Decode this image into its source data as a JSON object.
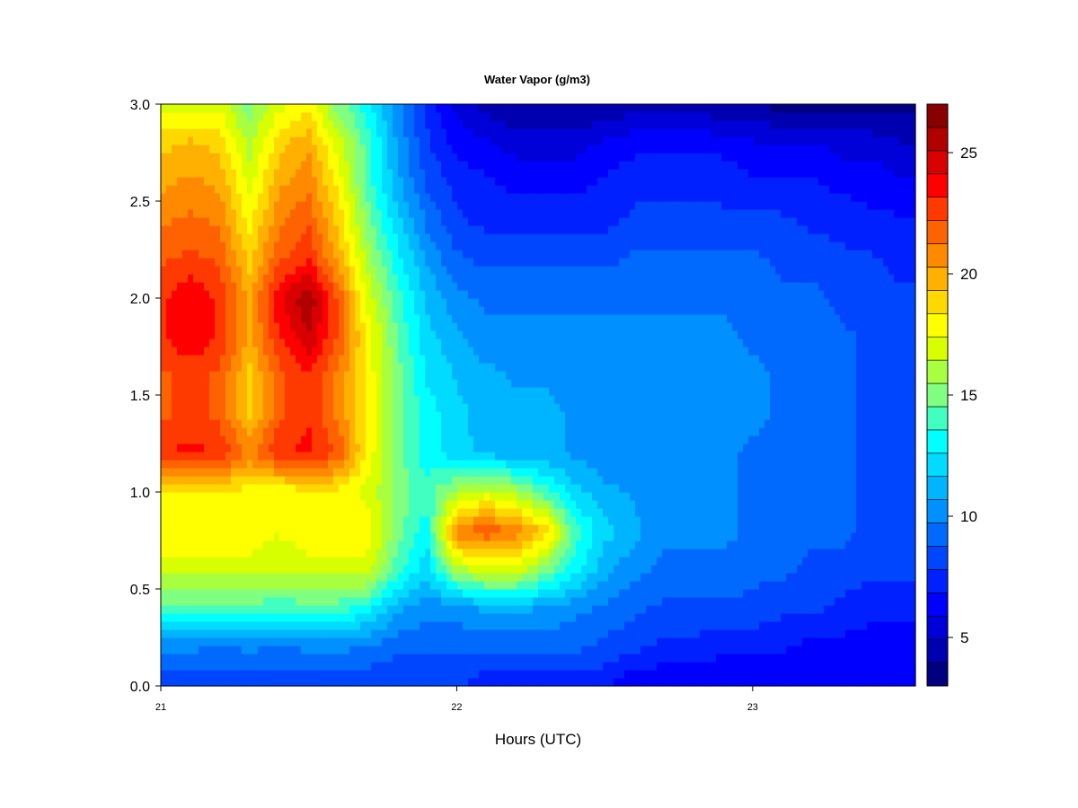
{
  "chart_data": {
    "type": "heatmap",
    "title": "Water Vapor (g/m3)",
    "xlabel": "Hours (UTC)",
    "ylabel": "",
    "xlim": [
      21.0,
      23.55
    ],
    "ylim": [
      0.0,
      3.0
    ],
    "x_ticks": [
      "21",
      "22",
      "23"
    ],
    "y_ticks": [
      "0.0",
      "0.5",
      "1.0",
      "1.5",
      "2.0",
      "2.5",
      "3.0"
    ],
    "colorbar": {
      "range": [
        3,
        27
      ],
      "ticks": [
        "5",
        "10",
        "15",
        "20",
        "25"
      ],
      "colors": [
        "#000080",
        "#0000b0",
        "#0000d8",
        "#0000ff",
        "#0020ff",
        "#0045ff",
        "#006aff",
        "#0090ff",
        "#00b5ff",
        "#00dbff",
        "#00ffff",
        "#40ffc0",
        "#80ff80",
        "#a8ff40",
        "#d8ff00",
        "#ffff00",
        "#ffd800",
        "#ffb000",
        "#ff8a00",
        "#ff6200",
        "#ff3a00",
        "#ff0000",
        "#d80000",
        "#b00000",
        "#880000"
      ]
    },
    "x": [
      21.0,
      21.1,
      21.2,
      21.3,
      21.4,
      21.5,
      21.6,
      21.7,
      21.8,
      21.9,
      22.0,
      22.1,
      22.2,
      22.3,
      22.4,
      22.5,
      22.6,
      22.7,
      22.8,
      22.9,
      23.0,
      23.1,
      23.2,
      23.3,
      23.4,
      23.5
    ],
    "y": [
      0.0,
      0.2,
      0.4,
      0.6,
      0.8,
      1.0,
      1.2,
      1.4,
      1.6,
      1.8,
      2.0,
      2.2,
      2.4,
      2.6,
      2.8,
      3.0
    ],
    "z": [
      [
        8,
        8,
        8,
        8,
        8,
        8,
        8,
        8,
        8,
        8,
        8,
        7,
        7,
        7,
        7,
        7,
        6,
        6,
        6,
        6,
        6,
        6,
        6,
        6,
        6,
        6
      ],
      [
        10,
        10,
        9.5,
        10,
        9.5,
        10,
        10,
        9.5,
        9,
        9,
        9,
        9,
        9,
        9,
        9,
        8.5,
        8,
        7.5,
        7.5,
        7,
        7,
        7,
        6.5,
        6.5,
        6.5,
        6.5
      ],
      [
        14,
        14,
        14,
        14,
        14,
        14,
        14,
        13,
        11,
        10,
        10,
        11,
        11,
        10.5,
        10,
        9.5,
        9,
        8.5,
        8.5,
        8.5,
        8.5,
        8,
        8,
        7.5,
        7,
        7
      ],
      [
        17,
        17,
        17,
        17,
        16.5,
        17,
        17,
        17,
        14,
        12,
        16,
        17,
        17,
        15,
        13,
        11,
        10,
        9.5,
        9.5,
        9.5,
        9,
        9,
        8.5,
        8.5,
        8,
        8
      ],
      [
        18,
        18,
        18,
        18,
        17.5,
        18,
        18,
        18,
        15,
        13,
        21,
        22,
        21,
        19,
        14,
        12,
        11,
        10,
        10,
        10,
        9.5,
        9.5,
        9,
        9,
        8.5,
        8.5
      ],
      [
        18,
        18,
        18,
        18,
        17.5,
        18,
        18,
        17,
        15,
        14,
        16,
        17,
        16,
        14,
        12,
        11,
        10.5,
        10,
        10,
        10,
        9.5,
        9.5,
        9,
        9,
        8.5,
        8.5
      ],
      [
        23,
        23.5,
        23,
        21,
        23,
        23.5,
        22,
        18,
        15,
        13,
        12,
        11.5,
        11,
        11,
        10.5,
        10,
        10,
        10,
        10,
        10,
        9.5,
        9.5,
        9,
        9,
        8.5,
        8
      ],
      [
        22,
        22.5,
        22,
        19,
        22,
        23,
        21,
        18,
        15,
        13,
        12,
        11,
        11,
        11,
        10.5,
        10,
        10,
        10,
        10,
        10,
        10,
        9.5,
        9,
        9,
        8.5,
        8
      ],
      [
        22,
        22.5,
        22,
        19,
        22,
        23,
        21,
        18,
        15,
        12.5,
        11.5,
        11,
        10.5,
        10.5,
        10,
        10,
        10,
        10,
        10,
        10,
        10,
        9.5,
        9,
        9,
        8.5,
        8
      ],
      [
        23,
        24,
        23,
        20,
        23,
        25,
        22,
        18,
        14.5,
        12,
        11,
        10,
        10,
        10,
        10,
        10,
        10,
        10,
        10,
        10,
        9.5,
        9.5,
        9,
        9,
        8.5,
        8
      ],
      [
        23,
        24,
        23,
        20,
        24,
        26,
        22,
        17,
        14,
        11.5,
        10,
        9.5,
        9.5,
        9.5,
        9.5,
        9.5,
        9.5,
        9.5,
        9.5,
        9.5,
        9.5,
        9,
        9,
        8.5,
        8,
        8
      ],
      [
        22,
        22.5,
        22,
        19,
        22,
        23,
        20,
        16,
        13,
        10.5,
        9,
        8.5,
        8.5,
        8.5,
        8.5,
        8.5,
        9,
        9,
        9,
        9,
        9,
        8.5,
        8.5,
        8,
        8,
        7.5
      ],
      [
        21,
        21.5,
        21,
        18,
        21,
        22,
        19,
        15,
        12,
        9.5,
        8,
        7.5,
        7.5,
        7.5,
        7.5,
        7.5,
        8,
        8,
        8,
        8,
        8,
        8,
        7.5,
        7.5,
        7,
        7
      ],
      [
        20,
        20.5,
        20,
        17,
        20,
        21,
        18,
        14,
        11,
        8.5,
        7.5,
        7,
        6.5,
        6.5,
        6.5,
        7,
        7.5,
        7.5,
        7.5,
        7.5,
        7,
        7,
        7,
        6.5,
        6.5,
        6
      ],
      [
        19,
        19.5,
        19,
        16,
        19,
        20,
        17,
        14,
        10.5,
        8,
        6.5,
        6,
        5.5,
        5.5,
        5.5,
        6,
        6.5,
        6.5,
        6.5,
        6.5,
        6,
        6,
        6,
        5.5,
        5.5,
        5
      ],
      [
        17,
        17,
        17,
        15,
        17,
        18,
        15,
        13,
        10,
        7.5,
        5.5,
        4.5,
        4,
        4,
        4,
        4,
        4.5,
        4.5,
        4.5,
        4,
        4,
        3.5,
        3.5,
        3.5,
        3.5,
        3.5
      ]
    ]
  }
}
